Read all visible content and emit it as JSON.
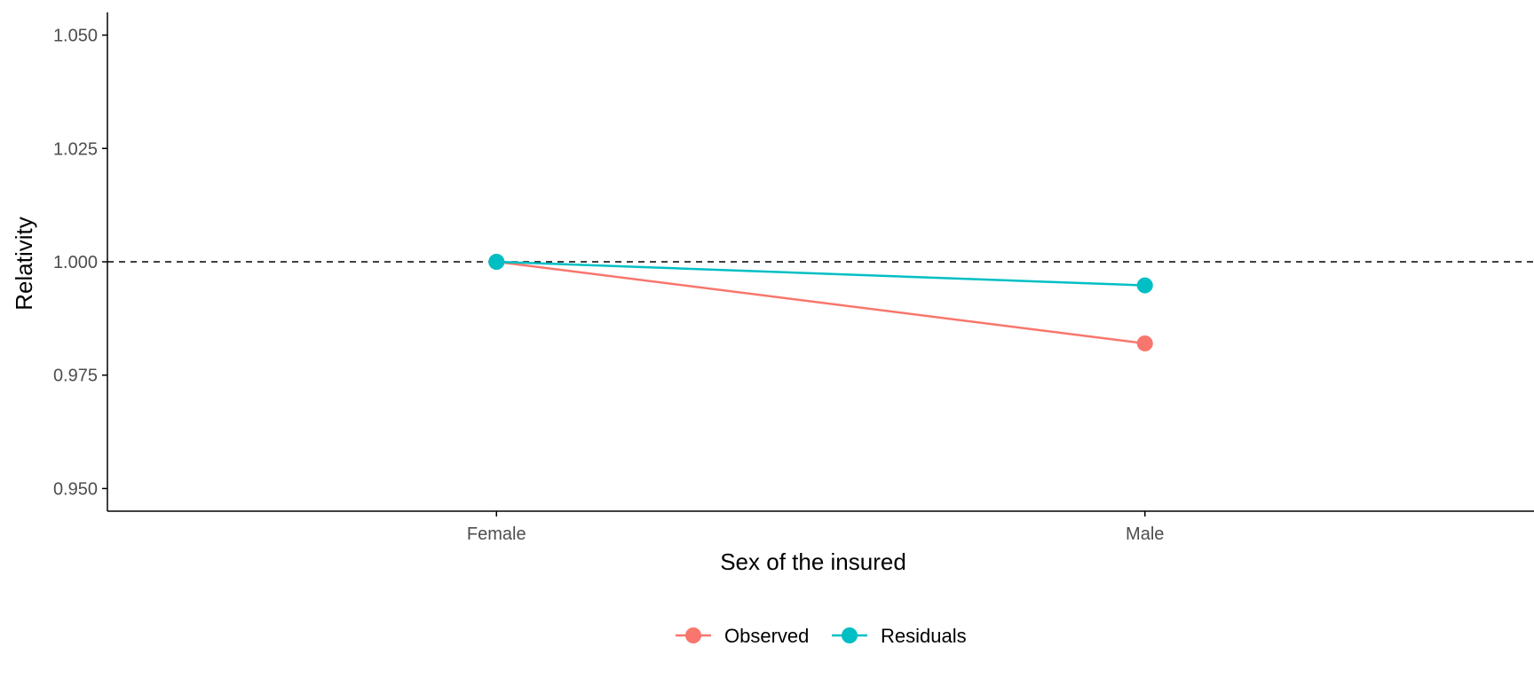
{
  "chart_data": {
    "type": "line",
    "title": "",
    "xlabel": "Sex of the insured",
    "ylabel": "Relativity",
    "categories": [
      "Female",
      "Male"
    ],
    "ylim": [
      0.945,
      1.055
    ],
    "yticks": [
      0.95,
      0.975,
      1.0,
      1.025,
      1.05
    ],
    "ytick_labels": [
      "0.950",
      "0.975",
      "1.000",
      "1.025",
      "1.050"
    ],
    "reference_line": {
      "y": 1.0,
      "style": "dashed",
      "color": "#000000"
    },
    "grid": false,
    "legend_position": "bottom",
    "series": [
      {
        "name": "Observed",
        "values": [
          1.0,
          0.982
        ],
        "color": "#F8766D"
      },
      {
        "name": "Residuals",
        "values": [
          1.0,
          0.9948
        ],
        "color": "#00BFC4"
      }
    ]
  }
}
